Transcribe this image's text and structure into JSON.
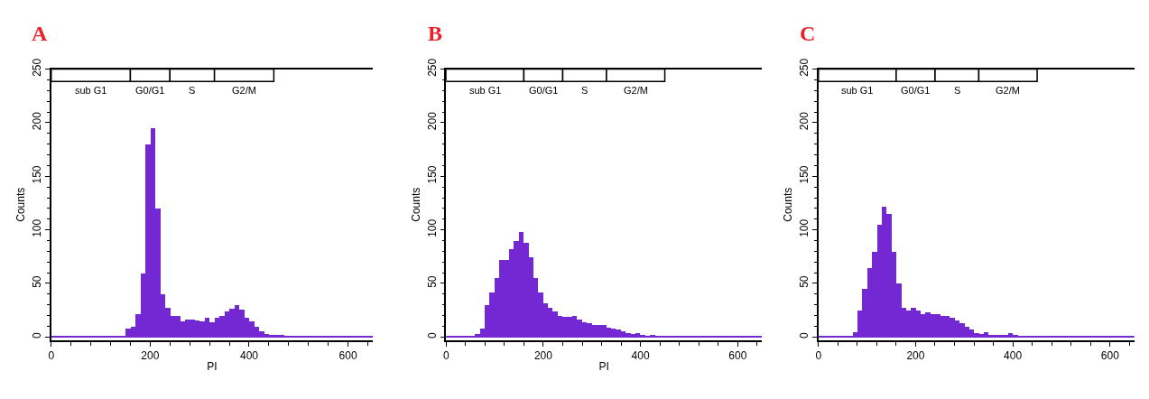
{
  "chart_data": [
    {
      "type": "histogram",
      "title": "A",
      "xlabel": "PI",
      "ylabel": "Counts",
      "color": "#7428d4",
      "bins": [
        0,
        10,
        20,
        30,
        40,
        50,
        60,
        70,
        80,
        90,
        100,
        110,
        120,
        130,
        140,
        150,
        160,
        170,
        180,
        190,
        200,
        210,
        220,
        230,
        240,
        250,
        260,
        270,
        280,
        290,
        300,
        310,
        320,
        330,
        340,
        350,
        360,
        370,
        380,
        390,
        400,
        410,
        420,
        430,
        440,
        450,
        460,
        470,
        480,
        490,
        500,
        510,
        520,
        530,
        540,
        550,
        560,
        570,
        580,
        590,
        600,
        610,
        620,
        630,
        640,
        650
      ],
      "values": [
        1,
        1,
        1,
        1,
        1,
        1,
        1,
        1,
        1,
        1,
        1,
        1,
        1,
        1,
        1,
        8,
        10,
        22,
        60,
        180,
        195,
        120,
        40,
        28,
        20,
        20,
        15,
        17,
        17,
        16,
        15,
        18,
        14,
        18,
        20,
        24,
        27,
        30,
        26,
        18,
        15,
        10,
        6,
        3,
        2,
        2,
        2,
        1,
        1,
        1,
        1,
        1,
        1,
        1,
        1,
        1,
        1,
        1,
        1,
        1,
        1,
        1,
        1,
        1,
        1
      ],
      "xlim": [
        0,
        650
      ],
      "xticks": [
        0,
        200,
        400,
        600
      ],
      "ylim": [
        -3,
        250
      ],
      "yticks": [
        0,
        50,
        100,
        150,
        200,
        250
      ],
      "bands": [
        {
          "axis": "x",
          "from": 0,
          "to": 160,
          "label": "sub G1"
        },
        {
          "axis": "x",
          "from": 160,
          "to": 240,
          "label": "G0/G1"
        },
        {
          "axis": "x",
          "from": 240,
          "to": 330,
          "label": "S"
        },
        {
          "axis": "x",
          "from": 330,
          "to": 450,
          "label": "G2/M"
        }
      ]
    },
    {
      "type": "histogram",
      "title": "B",
      "xlabel": "PI",
      "ylabel": "Counts",
      "color": "#7428d4",
      "bins": [
        0,
        10,
        20,
        30,
        40,
        50,
        60,
        70,
        80,
        90,
        100,
        110,
        120,
        130,
        140,
        150,
        160,
        170,
        180,
        190,
        200,
        210,
        220,
        230,
        240,
        250,
        260,
        270,
        280,
        290,
        300,
        310,
        320,
        330,
        340,
        350,
        360,
        370,
        380,
        390,
        400,
        410,
        420,
        430,
        440,
        450,
        460,
        470,
        480,
        490,
        500,
        510,
        520,
        530,
        540,
        550,
        560,
        570,
        580,
        590,
        600,
        610,
        620,
        630,
        640,
        650
      ],
      "values": [
        1,
        1,
        1,
        1,
        1,
        1,
        3,
        8,
        30,
        42,
        55,
        72,
        72,
        82,
        90,
        98,
        88,
        75,
        55,
        42,
        32,
        28,
        24,
        20,
        19,
        19,
        20,
        17,
        14,
        13,
        12,
        12,
        12,
        9,
        8,
        7,
        6,
        4,
        3,
        4,
        2,
        1,
        2,
        1,
        1,
        1,
        1,
        1,
        1,
        1,
        1,
        1,
        1,
        1,
        1,
        1,
        1,
        1,
        1,
        1,
        1,
        1,
        1,
        1,
        1
      ],
      "xlim": [
        0,
        650
      ],
      "xticks": [
        0,
        200,
        400,
        600
      ],
      "ylim": [
        -3,
        250
      ],
      "yticks": [
        0,
        50,
        100,
        150,
        200,
        250
      ],
      "bands": [
        {
          "axis": "x",
          "from": 0,
          "to": 160,
          "label": "sub G1"
        },
        {
          "axis": "x",
          "from": 160,
          "to": 240,
          "label": "G0/G1"
        },
        {
          "axis": "x",
          "from": 240,
          "to": 330,
          "label": "S"
        },
        {
          "axis": "x",
          "from": 330,
          "to": 450,
          "label": "G2/M"
        }
      ]
    },
    {
      "type": "histogram",
      "title": "C",
      "ylabel": "Counts",
      "color": "#7428d4",
      "bins": [
        0,
        10,
        20,
        30,
        40,
        50,
        60,
        70,
        80,
        90,
        100,
        110,
        120,
        130,
        140,
        150,
        160,
        170,
        180,
        190,
        200,
        210,
        220,
        230,
        240,
        250,
        260,
        270,
        280,
        290,
        300,
        310,
        320,
        330,
        340,
        350,
        360,
        370,
        380,
        390,
        400,
        410,
        420,
        430,
        440,
        450,
        460,
        470,
        480,
        490,
        500,
        510,
        520,
        530,
        540,
        550,
        560,
        570,
        580,
        590,
        600,
        610,
        620,
        630,
        640,
        650
      ],
      "values": [
        1,
        1,
        1,
        1,
        1,
        1,
        1,
        5,
        25,
        45,
        65,
        80,
        105,
        122,
        115,
        80,
        50,
        28,
        25,
        28,
        25,
        22,
        23,
        22,
        22,
        20,
        20,
        18,
        16,
        13,
        10,
        7,
        4,
        3,
        5,
        2,
        2,
        2,
        2,
        4,
        2,
        1,
        1,
        1,
        1,
        1,
        1,
        1,
        1,
        1,
        1,
        1,
        1,
        1,
        1,
        1,
        1,
        1,
        1,
        1,
        1,
        1,
        1,
        1,
        1
      ],
      "xlim": [
        0,
        650
      ],
      "xticks": [
        0,
        200,
        400,
        600
      ],
      "ylim": [
        -3,
        250
      ],
      "yticks": [
        0,
        50,
        100,
        150,
        200,
        250
      ],
      "bands": [
        {
          "axis": "x",
          "from": 0,
          "to": 160,
          "label": "sub G1"
        },
        {
          "axis": "x",
          "from": 160,
          "to": 240,
          "label": "G0/G1"
        },
        {
          "axis": "x",
          "from": 240,
          "to": 330,
          "label": "S"
        },
        {
          "axis": "x",
          "from": 330,
          "to": 450,
          "label": "G2/M"
        }
      ]
    }
  ]
}
